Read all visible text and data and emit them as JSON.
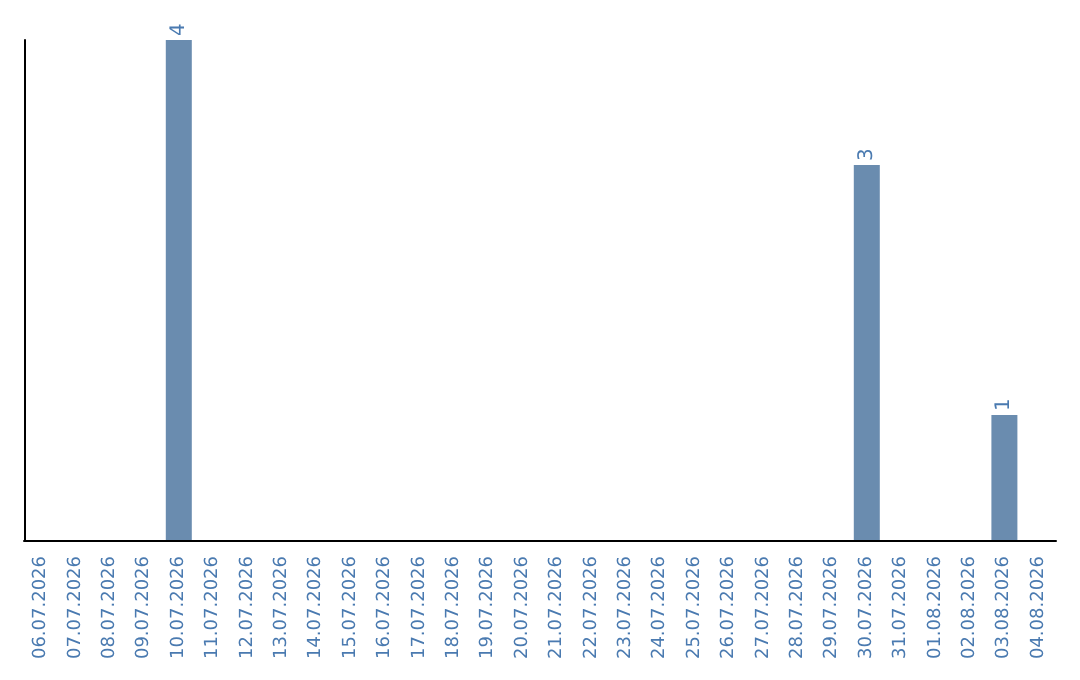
{
  "chart_data": {
    "type": "bar",
    "categories": [
      "06.07.2026",
      "07.07.2026",
      "08.07.2026",
      "09.07.2026",
      "10.07.2026",
      "11.07.2026",
      "12.07.2026",
      "13.07.2026",
      "14.07.2026",
      "15.07.2026",
      "16.07.2026",
      "17.07.2026",
      "18.07.2026",
      "19.07.2026",
      "20.07.2026",
      "21.07.2026",
      "22.07.2026",
      "23.07.2026",
      "24.07.2026",
      "25.07.2026",
      "26.07.2026",
      "27.07.2026",
      "28.07.2026",
      "29.07.2026",
      "30.07.2026",
      "31.07.2026",
      "01.08.2026",
      "02.08.2026",
      "03.08.2026",
      "04.08.2026"
    ],
    "values": [
      0,
      0,
      0,
      0,
      4,
      0,
      0,
      0,
      0,
      0,
      0,
      0,
      0,
      0,
      0,
      0,
      0,
      0,
      0,
      0,
      0,
      0,
      0,
      0,
      3,
      0,
      0,
      0,
      1,
      0
    ],
    "value_labels": [
      null,
      null,
      null,
      null,
      "4",
      null,
      null,
      null,
      null,
      null,
      null,
      null,
      null,
      null,
      null,
      null,
      null,
      null,
      null,
      null,
      null,
      null,
      null,
      null,
      "3",
      null,
      null,
      null,
      "1",
      null
    ],
    "color": "#6a8caf",
    "tick_labels": "x"
  }
}
